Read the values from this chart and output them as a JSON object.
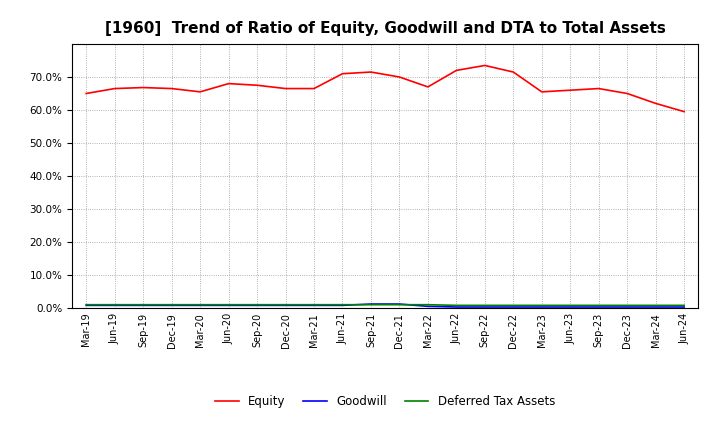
{
  "title": "[1960]  Trend of Ratio of Equity, Goodwill and DTA to Total Assets",
  "x_labels": [
    "Mar-19",
    "Jun-19",
    "Sep-19",
    "Dec-19",
    "Mar-20",
    "Jun-20",
    "Sep-20",
    "Dec-20",
    "Mar-21",
    "Jun-21",
    "Sep-21",
    "Dec-21",
    "Mar-22",
    "Jun-22",
    "Sep-22",
    "Dec-22",
    "Mar-23",
    "Jun-23",
    "Sep-23",
    "Dec-23",
    "Mar-24",
    "Jun-24"
  ],
  "equity": [
    65.0,
    66.5,
    66.8,
    66.5,
    65.5,
    68.0,
    67.5,
    66.5,
    66.5,
    71.0,
    71.5,
    70.0,
    67.0,
    72.0,
    73.5,
    71.5,
    65.5,
    66.0,
    66.5,
    65.0,
    62.0,
    59.5
  ],
  "goodwill": [
    0.8,
    0.8,
    0.8,
    0.8,
    0.8,
    0.8,
    0.8,
    0.8,
    0.8,
    0.8,
    1.2,
    1.2,
    0.5,
    0.3,
    0.3,
    0.3,
    0.3,
    0.3,
    0.3,
    0.3,
    0.3,
    0.3
  ],
  "dta": [
    1.0,
    1.0,
    1.0,
    1.0,
    1.0,
    1.0,
    1.0,
    1.0,
    1.0,
    1.0,
    1.0,
    1.0,
    1.0,
    0.8,
    0.8,
    0.8,
    0.8,
    0.8,
    0.8,
    0.8,
    0.8,
    0.8
  ],
  "equity_color": "#ff0000",
  "goodwill_color": "#0000ff",
  "dta_color": "#008000",
  "ylim": [
    0,
    80
  ],
  "yticks": [
    0,
    10,
    20,
    30,
    40,
    50,
    60,
    70
  ],
  "background_color": "#ffffff",
  "grid_color": "#999999",
  "title_fontsize": 11,
  "legend_labels": [
    "Equity",
    "Goodwill",
    "Deferred Tax Assets"
  ]
}
